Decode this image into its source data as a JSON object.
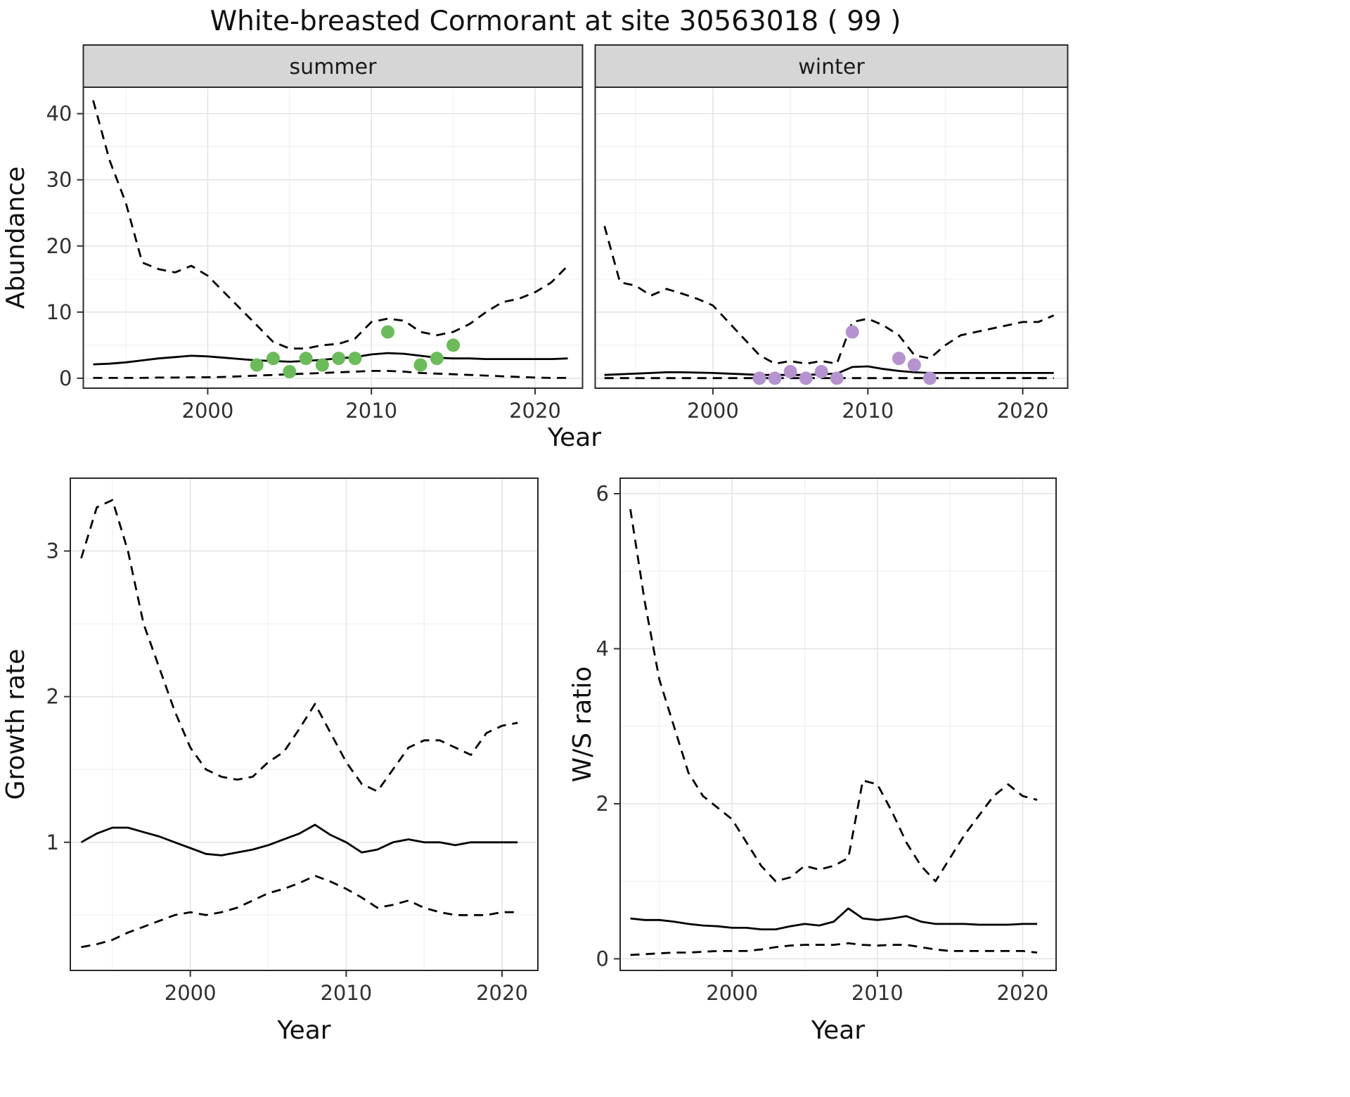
{
  "title": "White-breasted Cormorant at site 30563018 ( 99 )",
  "shared_x_label": "Year",
  "colors": {
    "summer_points": "#6cbb5a",
    "winter_points": "#b493ce",
    "strip_bg": "#d6d6d6",
    "line": "#000000",
    "grid_major": "#e4e4e4",
    "grid_minor": "#f1f1f1",
    "panel_border": "#2b2b2b",
    "background": "#ffffff"
  },
  "chart_data": [
    {
      "id": "abundance",
      "type": "line",
      "ylabel": "Abundance",
      "xlabel": "Year",
      "xlim": [
        1992.4,
        2022.9
      ],
      "xticks": [
        2000,
        2010,
        2020
      ],
      "ylim": [
        -1.5,
        44
      ],
      "yticks": [
        0,
        10,
        20,
        30,
        40
      ],
      "grid": true,
      "legend": "none",
      "series_styles": [
        "upper CI (dashed)",
        "mean (solid)",
        "lower CI (dashed)",
        "observations (points)"
      ],
      "facets": [
        {
          "label": "summer",
          "point_color": "#6cbb5a",
          "years": [
            1993,
            1994,
            1995,
            1996,
            1997,
            1998,
            1999,
            2000,
            2001,
            2002,
            2003,
            2004,
            2005,
            2006,
            2007,
            2008,
            2009,
            2010,
            2011,
            2012,
            2013,
            2014,
            2015,
            2016,
            2017,
            2018,
            2019,
            2020,
            2021,
            2022
          ],
          "upper": [
            42,
            33,
            26.5,
            17.5,
            16.5,
            16,
            17,
            15.5,
            13,
            10.5,
            8,
            5.5,
            4.5,
            4.5,
            5,
            5.2,
            6,
            8.5,
            9,
            8.7,
            7,
            6.5,
            7,
            8.2,
            10,
            11.5,
            12,
            13,
            14.5,
            17
          ],
          "mean": [
            2.1,
            2.2,
            2.4,
            2.7,
            3.0,
            3.2,
            3.4,
            3.3,
            3.1,
            2.9,
            2.7,
            2.6,
            2.5,
            2.6,
            2.8,
            3.0,
            3.2,
            3.6,
            3.8,
            3.7,
            3.4,
            3.1,
            3.0,
            3.0,
            2.9,
            2.9,
            2.9,
            2.9,
            2.9,
            3.0
          ],
          "lower": [
            0.05,
            0.05,
            0.05,
            0.05,
            0.1,
            0.1,
            0.15,
            0.15,
            0.2,
            0.3,
            0.4,
            0.5,
            0.6,
            0.7,
            0.8,
            0.9,
            1.0,
            1.1,
            1.1,
            1.0,
            0.8,
            0.7,
            0.6,
            0.5,
            0.4,
            0.3,
            0.2,
            0.1,
            0.05,
            0.05
          ],
          "observations": [
            [
              2003,
              2
            ],
            [
              2004,
              3
            ],
            [
              2005,
              1
            ],
            [
              2006,
              3
            ],
            [
              2007,
              2
            ],
            [
              2008,
              3
            ],
            [
              2009,
              3
            ],
            [
              2011,
              7
            ],
            [
              2013,
              2
            ],
            [
              2014,
              3
            ],
            [
              2015,
              5
            ]
          ]
        },
        {
          "label": "winter",
          "point_color": "#b493ce",
          "years": [
            1993,
            1994,
            1995,
            1996,
            1997,
            1998,
            1999,
            2000,
            2001,
            2002,
            2003,
            2004,
            2005,
            2006,
            2007,
            2008,
            2009,
            2010,
            2011,
            2012,
            2013,
            2014,
            2015,
            2016,
            2017,
            2018,
            2019,
            2020,
            2021,
            2022
          ],
          "upper": [
            23,
            14.5,
            14,
            12.5,
            13.5,
            12.8,
            12,
            11,
            8.5,
            6,
            3.5,
            2.2,
            2.6,
            2.2,
            2.6,
            2.2,
            8.5,
            9,
            8,
            6.5,
            3.5,
            3,
            5,
            6.5,
            7,
            7.5,
            8,
            8.5,
            8.5,
            9.5
          ],
          "mean": [
            0.5,
            0.6,
            0.7,
            0.8,
            0.9,
            0.9,
            0.85,
            0.8,
            0.7,
            0.6,
            0.5,
            0.5,
            0.5,
            0.5,
            0.6,
            0.7,
            1.7,
            1.8,
            1.4,
            1.1,
            0.9,
            0.8,
            0.8,
            0.8,
            0.8,
            0.8,
            0.8,
            0.8,
            0.8,
            0.8
          ],
          "lower": [
            0.02,
            0.02,
            0.02,
            0.02,
            0.02,
            0.02,
            0.02,
            0.02,
            0.02,
            0.02,
            0.02,
            0.02,
            0.02,
            0.02,
            0.02,
            0.02,
            0.02,
            0.02,
            0.02,
            0.02,
            0.02,
            0.02,
            0.02,
            0.02,
            0.02,
            0.02,
            0.02,
            0.02,
            0.02,
            0.02
          ],
          "observations": [
            [
              2003,
              0
            ],
            [
              2004,
              0
            ],
            [
              2005,
              1
            ],
            [
              2006,
              0
            ],
            [
              2007,
              1
            ],
            [
              2008,
              0
            ],
            [
              2009,
              7
            ],
            [
              2012,
              3
            ],
            [
              2013,
              2
            ],
            [
              2014,
              0
            ]
          ]
        }
      ]
    },
    {
      "id": "growth_rate",
      "type": "line",
      "ylabel": "Growth rate",
      "xlabel": "Year",
      "xlim": [
        1992.3,
        2022.3
      ],
      "xticks": [
        2000,
        2010,
        2020
      ],
      "ylim": [
        0.12,
        3.5
      ],
      "yticks": [
        1,
        2,
        3
      ],
      "grid": true,
      "legend": "none",
      "years": [
        1993,
        1994,
        1995,
        1996,
        1997,
        1998,
        1999,
        2000,
        2001,
        2002,
        2003,
        2004,
        2005,
        2006,
        2007,
        2008,
        2009,
        2010,
        2011,
        2012,
        2013,
        2014,
        2015,
        2016,
        2017,
        2018,
        2019,
        2020,
        2021
      ],
      "upper": [
        2.95,
        3.3,
        3.35,
        3.0,
        2.5,
        2.2,
        1.9,
        1.65,
        1.5,
        1.45,
        1.43,
        1.45,
        1.55,
        1.62,
        1.78,
        1.95,
        1.75,
        1.55,
        1.4,
        1.35,
        1.5,
        1.65,
        1.7,
        1.7,
        1.65,
        1.6,
        1.75,
        1.8,
        1.82
      ],
      "mean": [
        1.0,
        1.06,
        1.1,
        1.1,
        1.07,
        1.04,
        1.0,
        0.96,
        0.92,
        0.91,
        0.93,
        0.95,
        0.98,
        1.02,
        1.06,
        1.12,
        1.05,
        1.0,
        0.93,
        0.95,
        1.0,
        1.02,
        1.0,
        1.0,
        0.98,
        1.0,
        1.0,
        1.0,
        1.0
      ],
      "lower": [
        0.28,
        0.3,
        0.33,
        0.38,
        0.42,
        0.46,
        0.5,
        0.52,
        0.5,
        0.52,
        0.55,
        0.6,
        0.65,
        0.68,
        0.72,
        0.77,
        0.73,
        0.68,
        0.62,
        0.55,
        0.57,
        0.6,
        0.55,
        0.52,
        0.5,
        0.5,
        0.5,
        0.52,
        0.52
      ]
    },
    {
      "id": "ws_ratio",
      "type": "line",
      "ylabel": "W/S ratio",
      "xlabel": "Year",
      "xlim": [
        1992.3,
        2022.3
      ],
      "xticks": [
        2000,
        2010,
        2020
      ],
      "ylim": [
        -0.15,
        6.2
      ],
      "yticks": [
        0,
        2,
        4,
        6
      ],
      "grid": true,
      "legend": "none",
      "years": [
        1993,
        1994,
        1995,
        1996,
        1997,
        1998,
        1999,
        2000,
        2001,
        2002,
        2003,
        2004,
        2005,
        2006,
        2007,
        2008,
        2009,
        2010,
        2011,
        2012,
        2013,
        2014,
        2015,
        2016,
        2017,
        2018,
        2019,
        2020,
        2021
      ],
      "upper": [
        5.8,
        4.6,
        3.6,
        3.0,
        2.4,
        2.1,
        1.95,
        1.8,
        1.5,
        1.2,
        1.0,
        1.05,
        1.2,
        1.15,
        1.2,
        1.3,
        2.3,
        2.25,
        1.9,
        1.5,
        1.2,
        1.0,
        1.3,
        1.6,
        1.85,
        2.1,
        2.25,
        2.1,
        2.05
      ],
      "mean": [
        0.52,
        0.5,
        0.5,
        0.48,
        0.45,
        0.43,
        0.42,
        0.4,
        0.4,
        0.38,
        0.38,
        0.42,
        0.45,
        0.43,
        0.48,
        0.65,
        0.52,
        0.5,
        0.52,
        0.55,
        0.48,
        0.45,
        0.45,
        0.45,
        0.44,
        0.44,
        0.44,
        0.45,
        0.45
      ],
      "lower": [
        0.05,
        0.06,
        0.07,
        0.08,
        0.08,
        0.09,
        0.1,
        0.1,
        0.1,
        0.12,
        0.15,
        0.17,
        0.18,
        0.18,
        0.18,
        0.2,
        0.18,
        0.17,
        0.18,
        0.18,
        0.15,
        0.12,
        0.1,
        0.1,
        0.1,
        0.1,
        0.1,
        0.1,
        0.08
      ]
    }
  ]
}
